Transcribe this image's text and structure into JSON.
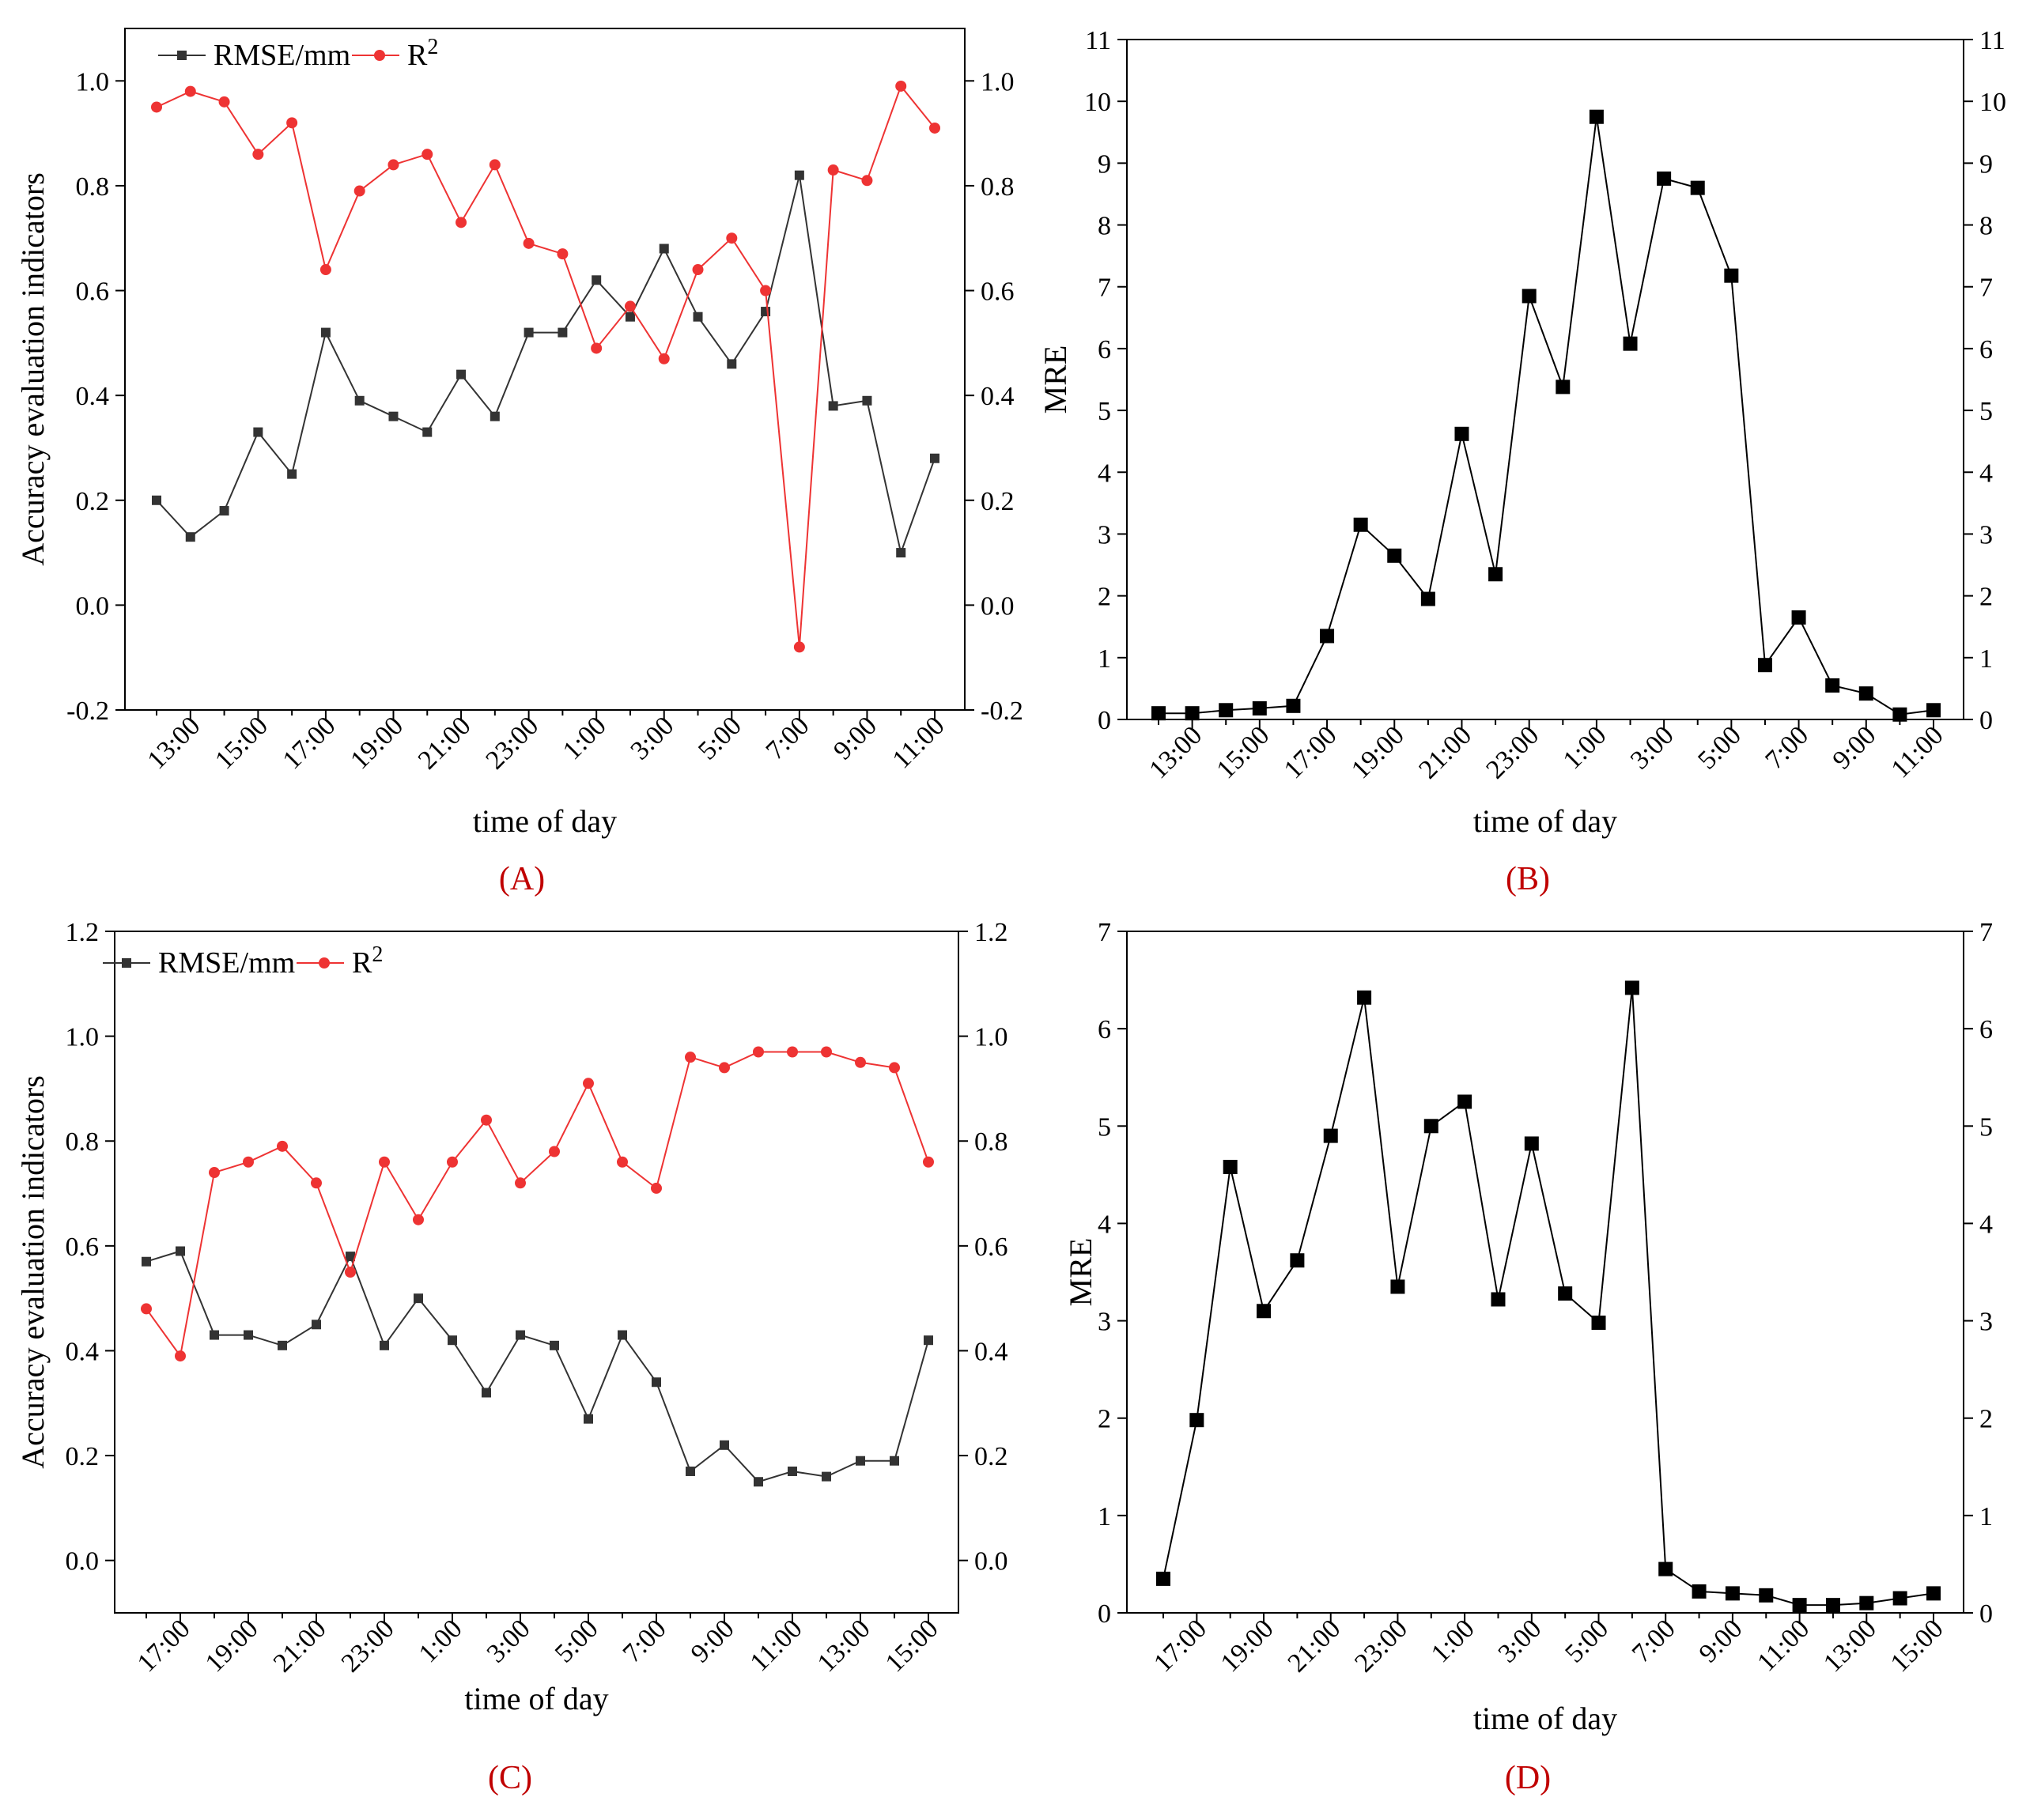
{
  "colors": {
    "rmse": "#333333",
    "r2": "#ee3333",
    "mre": "#000000",
    "panel_label": "#c00000"
  },
  "chart_data": [
    {
      "panel": "(A)",
      "type": "line",
      "xlabel": "time of day",
      "ylabel": "Accuracy evaluation indicators",
      "ylim": [
        -0.2,
        1.1
      ],
      "yticks": [
        "-0.2",
        "0.0",
        "0.2",
        "0.4",
        "0.6",
        "0.8",
        "1.0"
      ],
      "ytick_values": [
        -0.2,
        0,
        0.2,
        0.4,
        0.6,
        0.8,
        1.0
      ],
      "xticks": [
        "13:00",
        "15:00",
        "17:00",
        "19:00",
        "21:00",
        "23:00",
        "1:00",
        "3:00",
        "5:00",
        "7:00",
        "9:00",
        "11:00"
      ],
      "xtick_index": [
        1,
        3,
        5,
        7,
        9,
        11,
        13,
        15,
        17,
        19,
        21,
        23
      ],
      "x_count": 24,
      "legend": {
        "rmse": "RMSE/mm",
        "r2_base": "R",
        "r2_sup": "2"
      },
      "series": [
        {
          "name": "RMSE/mm",
          "marker": "square",
          "color_key": "rmse",
          "values": [
            0.2,
            0.13,
            0.18,
            0.33,
            0.25,
            0.52,
            0.39,
            0.36,
            0.33,
            0.44,
            0.36,
            0.52,
            0.52,
            0.62,
            0.55,
            0.68,
            0.55,
            0.46,
            0.56,
            0.82,
            0.38,
            0.39,
            0.1,
            0.28
          ]
        },
        {
          "name": "R2",
          "marker": "circle",
          "color_key": "r2",
          "values": [
            0.95,
            0.98,
            0.96,
            0.86,
            0.92,
            0.64,
            0.79,
            0.84,
            0.86,
            0.73,
            0.84,
            0.69,
            0.67,
            0.49,
            0.57,
            0.47,
            0.64,
            0.7,
            0.6,
            -0.08,
            0.83,
            0.81,
            0.99,
            0.91
          ]
        }
      ]
    },
    {
      "panel": "(B)",
      "type": "line",
      "xlabel": "time of day",
      "ylabel": "MRE",
      "ylim": [
        0,
        11
      ],
      "yticks": [
        "0",
        "1",
        "2",
        "3",
        "4",
        "5",
        "6",
        "7",
        "8",
        "9",
        "10",
        "11"
      ],
      "ytick_values": [
        0,
        1,
        2,
        3,
        4,
        5,
        6,
        7,
        8,
        9,
        10,
        11
      ],
      "xticks": [
        "13:00",
        "15:00",
        "17:00",
        "19:00",
        "21:00",
        "23:00",
        "1:00",
        "3:00",
        "5:00",
        "7:00",
        "9:00",
        "11:00"
      ],
      "xtick_index": [
        1,
        3,
        5,
        7,
        9,
        11,
        13,
        15,
        17,
        19,
        21,
        23
      ],
      "x_count": 24,
      "series": [
        {
          "name": "MRE",
          "marker": "square-large",
          "color_key": "mre",
          "values": [
            0.1,
            0.1,
            0.15,
            0.18,
            0.22,
            1.35,
            3.15,
            2.65,
            1.95,
            4.62,
            2.35,
            6.85,
            5.38,
            9.75,
            6.08,
            8.75,
            8.6,
            7.18,
            0.88,
            1.65,
            0.55,
            0.42,
            0.08,
            0.15
          ]
        }
      ]
    },
    {
      "panel": "(C)",
      "type": "line",
      "xlabel": "time of day",
      "ylabel": "Accuracy evaluation indicators",
      "ylim": [
        -0.1,
        1.2
      ],
      "yticks": [
        "0.0",
        "0.2",
        "0.4",
        "0.6",
        "0.8",
        "1.0",
        "1.2"
      ],
      "ytick_values": [
        0,
        0.2,
        0.4,
        0.6,
        0.8,
        1.0,
        1.2
      ],
      "xticks": [
        "17:00",
        "19:00",
        "21:00",
        "23:00",
        "1:00",
        "3:00",
        "5:00",
        "7:00",
        "9:00",
        "11:00",
        "13:00",
        "15:00"
      ],
      "xtick_index": [
        1,
        3,
        5,
        7,
        9,
        11,
        13,
        15,
        17,
        19,
        21,
        23
      ],
      "x_count": 24,
      "legend": {
        "rmse": "RMSE/mm",
        "r2_base": "R",
        "r2_sup": "2"
      },
      "series": [
        {
          "name": "RMSE/mm",
          "marker": "square",
          "color_key": "rmse",
          "values": [
            0.57,
            0.59,
            0.43,
            0.43,
            0.41,
            0.45,
            0.58,
            0.41,
            0.5,
            0.42,
            0.32,
            0.43,
            0.41,
            0.27,
            0.43,
            0.34,
            0.17,
            0.22,
            0.15,
            0.17,
            0.16,
            0.19,
            0.19,
            0.42
          ]
        },
        {
          "name": "R2",
          "marker": "circle",
          "color_key": "r2",
          "values": [
            0.48,
            0.39,
            0.74,
            0.76,
            0.79,
            0.72,
            0.55,
            0.76,
            0.65,
            0.76,
            0.84,
            0.72,
            0.78,
            0.91,
            0.76,
            0.71,
            0.96,
            0.94,
            0.97,
            0.97,
            0.97,
            0.95,
            0.94,
            0.76
          ]
        }
      ]
    },
    {
      "panel": "(D)",
      "type": "line",
      "xlabel": "time of day",
      "ylabel": "MRE",
      "ylim": [
        0,
        7
      ],
      "yticks": [
        "0",
        "1",
        "2",
        "3",
        "4",
        "5",
        "6",
        "7"
      ],
      "ytick_values": [
        0,
        1,
        2,
        3,
        4,
        5,
        6,
        7
      ],
      "xticks": [
        "17:00",
        "19:00",
        "21:00",
        "23:00",
        "1:00",
        "3:00",
        "5:00",
        "7:00",
        "9:00",
        "11:00",
        "13:00",
        "15:00"
      ],
      "xtick_index": [
        1,
        3,
        5,
        7,
        9,
        11,
        13,
        15,
        17,
        19,
        21,
        23
      ],
      "x_count": 24,
      "series": [
        {
          "name": "MRE",
          "marker": "square-large",
          "color_key": "mre",
          "values": [
            0.35,
            1.98,
            4.58,
            3.1,
            3.62,
            4.9,
            6.32,
            3.35,
            5.0,
            5.25,
            3.22,
            4.82,
            3.28,
            2.98,
            6.42,
            0.45,
            0.22,
            0.2,
            0.18,
            0.08,
            0.08,
            0.1,
            0.15,
            0.2
          ]
        }
      ]
    }
  ]
}
